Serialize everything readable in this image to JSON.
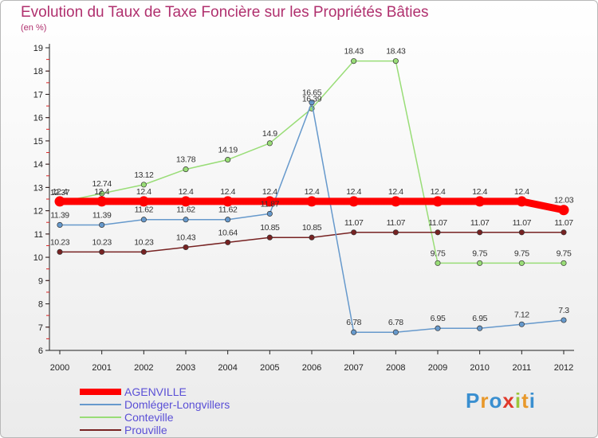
{
  "title": "Evolution du Taux de Taxe Foncière sur les Propriétés Bâties",
  "subtitle": "(en %)",
  "logo": {
    "text": "Proxiti",
    "letter_colors": [
      "#3a8fd0",
      "#e8982a",
      "#3a8fd0",
      "#e0392b",
      "#9cc63a",
      "#e8982a",
      "#3a8fd0"
    ]
  },
  "chart_data": {
    "type": "line",
    "x": [
      "2000",
      "2001",
      "2002",
      "2003",
      "2004",
      "2005",
      "2006",
      "2007",
      "2008",
      "2009",
      "2010",
      "2011",
      "2012"
    ],
    "ylim": [
      6,
      19
    ],
    "yticks": [
      "6",
      "7",
      "8",
      "9",
      "10",
      "11",
      "12",
      "13",
      "14",
      "15",
      "16",
      "17",
      "18",
      "19"
    ],
    "grid": false,
    "legend_position": "bottom-left",
    "series": [
      {
        "name": "AGENVILLE",
        "color": "#ff0000",
        "values": [
          12.4,
          12.4,
          12.4,
          12.4,
          12.4,
          12.4,
          12.4,
          12.4,
          12.4,
          12.4,
          12.4,
          12.4,
          12.03
        ],
        "labels": [
          "12.4",
          "12.4",
          "12.4",
          "12.4",
          "12.4",
          "12.4",
          "12.4",
          "12.4",
          "12.4",
          "12.4",
          "12.4",
          "12.4",
          "12.03"
        ]
      },
      {
        "name": "Domléger-Longvillers",
        "color": "#6699cc",
        "values": [
          11.39,
          11.39,
          11.62,
          11.62,
          11.62,
          11.87,
          16.65,
          6.78,
          6.78,
          6.95,
          6.95,
          7.12,
          7.3
        ],
        "labels": [
          "11.39",
          "11.39",
          "11.62",
          "11.62",
          "11.62",
          "11.87",
          "16.65",
          "6.78",
          "6.78",
          "6.95",
          "6.95",
          "7.12",
          "7.3"
        ]
      },
      {
        "name": "Conteville",
        "color": "#99dd77",
        "values": [
          12.37,
          12.74,
          13.12,
          13.78,
          14.19,
          14.9,
          16.39,
          18.43,
          18.43,
          9.75,
          9.75,
          9.75,
          9.75
        ],
        "labels": [
          "12.37",
          "12.74",
          "13.12",
          "13.78",
          "14.19",
          "14.9",
          "16.39",
          "18.43",
          "18.43",
          "9.75",
          "9.75",
          "9.75",
          "9.75"
        ]
      },
      {
        "name": "Prouville",
        "color": "#772222",
        "values": [
          10.23,
          10.23,
          10.23,
          10.43,
          10.64,
          10.85,
          10.85,
          11.07,
          11.07,
          11.07,
          11.07,
          11.07,
          11.07
        ],
        "labels": [
          "10.23",
          "10.23",
          "10.23",
          "10.43",
          "10.64",
          "10.85",
          "10.85",
          "11.07",
          "11.07",
          "11.07",
          "11.07",
          "11.07",
          "11.07"
        ]
      }
    ]
  }
}
